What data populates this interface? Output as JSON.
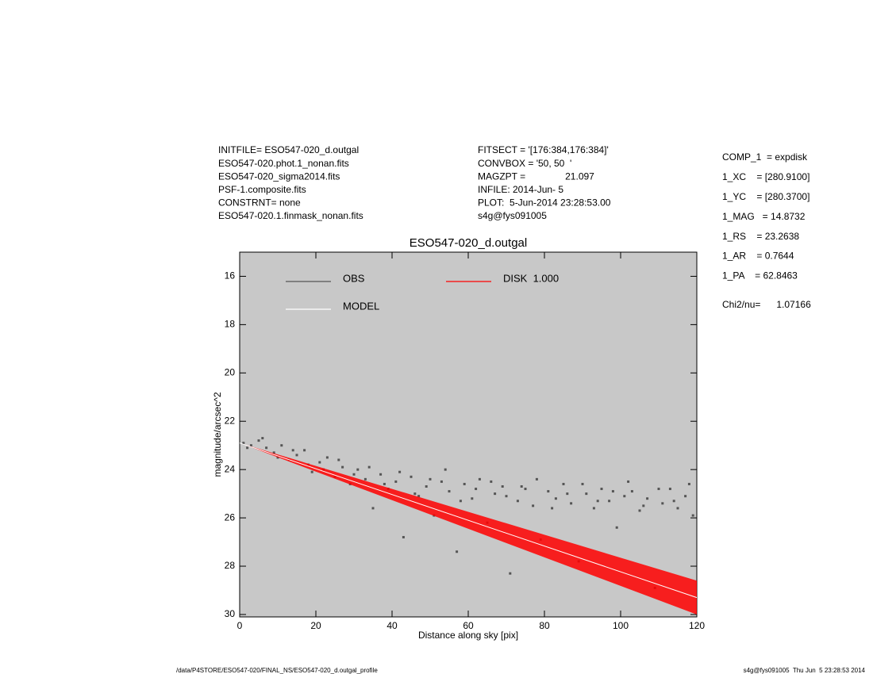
{
  "header": {
    "left": [
      "INITFILE= ESO547-020_d.outgal",
      "ESO547-020.phot.1_nonan.fits",
      "ESO547-020_sigma2014.fits",
      "PSF-1.composite.fits",
      "CONSTRNT= none",
      "ESO547-020.1.finmask_nonan.fits"
    ],
    "middle": [
      "FITSECT = '[176:384,176:384]'",
      "CONVBOX = '50, 50  '",
      "MAGZPT =               21.097",
      "INFILE: 2014-Jun- 5",
      "PLOT:  5-Jun-2014 23:28:53.00",
      "s4g@fys091005"
    ],
    "right": [
      "COMP_1  = expdisk",
      "1_XC    = [280.9100]",
      "1_YC    = [280.3700]",
      "1_MAG   = 14.8732",
      "1_RS    = 23.2638",
      "1_AR    = 0.7644",
      "1_PA    = 62.8463",
      "Chi2/nu=      1.07166"
    ]
  },
  "footer": {
    "left": "/data/P4STORE/ESO547-020/FINAL_NS/ESO547-020_d.outgal_profile",
    "right": "s4g@fys091005  Thu Jun  5 23:28:53 2014"
  },
  "chart_data": {
    "type": "scatter",
    "title": "ESO547-020_d.outgal",
    "xlabel": "Distance along sky [pix]",
    "ylabel": "magnitude/arcsec^2",
    "xlim": [
      0,
      120
    ],
    "ylim": [
      15,
      30.1
    ],
    "xticks": [
      0,
      20,
      40,
      60,
      80,
      100,
      120
    ],
    "yticks": [
      16,
      18,
      20,
      22,
      24,
      26,
      28,
      30
    ],
    "y_inverted": true,
    "background": "#c8c8c8",
    "series": [
      {
        "name": "OBS",
        "color": "#555555",
        "x": [
          1,
          3,
          5,
          7,
          9,
          11,
          13,
          15,
          17,
          19,
          21,
          23,
          25,
          27,
          29,
          31,
          33,
          35,
          37,
          39,
          41,
          43,
          45,
          47,
          49,
          51,
          53,
          55,
          57,
          59,
          61,
          63,
          65,
          67,
          69,
          71,
          73,
          75,
          77,
          79,
          81,
          83,
          85,
          87,
          89,
          91,
          93,
          95,
          97,
          99,
          101,
          103,
          105,
          107,
          109,
          111,
          113,
          115,
          117,
          119,
          2,
          6,
          10,
          14,
          18,
          22,
          26,
          30,
          34,
          38,
          42,
          46,
          50,
          54,
          58,
          62,
          66,
          70,
          74,
          78,
          82,
          86,
          90,
          94,
          98,
          102,
          106,
          110,
          114,
          118
        ],
        "values": [
          22.9,
          23.0,
          22.8,
          23.1,
          23.3,
          23.0,
          23.6,
          23.4,
          23.2,
          24.1,
          23.7,
          23.5,
          24.3,
          23.9,
          24.6,
          24.0,
          24.4,
          25.6,
          24.2,
          24.8,
          24.5,
          26.8,
          24.3,
          25.1,
          24.7,
          25.9,
          24.5,
          24.9,
          27.4,
          24.6,
          25.2,
          24.4,
          26.2,
          25.0,
          24.7,
          28.3,
          25.3,
          24.8,
          25.5,
          26.9,
          24.9,
          25.2,
          24.6,
          25.4,
          27.8,
          25.0,
          25.6,
          24.8,
          25.3,
          26.4,
          25.1,
          24.9,
          25.7,
          25.2,
          28.9,
          25.4,
          24.8,
          25.6,
          25.1,
          25.9,
          23.1,
          22.7,
          23.5,
          23.2,
          23.8,
          24.0,
          23.6,
          24.2,
          23.9,
          24.6,
          24.1,
          25.0,
          24.4,
          24.0,
          25.3,
          24.8,
          24.5,
          25.1,
          24.7,
          24.4,
          25.6,
          25.0,
          24.6,
          25.3,
          24.9,
          24.5,
          25.5,
          24.8,
          25.3,
          24.6
        ]
      },
      {
        "name": "MODEL",
        "color": "#ffffff",
        "x": [
          0,
          120
        ],
        "values": [
          22.9,
          29.3
        ]
      },
      {
        "name": "DISK  1.000",
        "color": "#ff0000",
        "x": [
          0,
          120
        ],
        "values": [
          22.9,
          28.6
        ],
        "lower": [
          22.9,
          30.0
        ]
      }
    ]
  }
}
